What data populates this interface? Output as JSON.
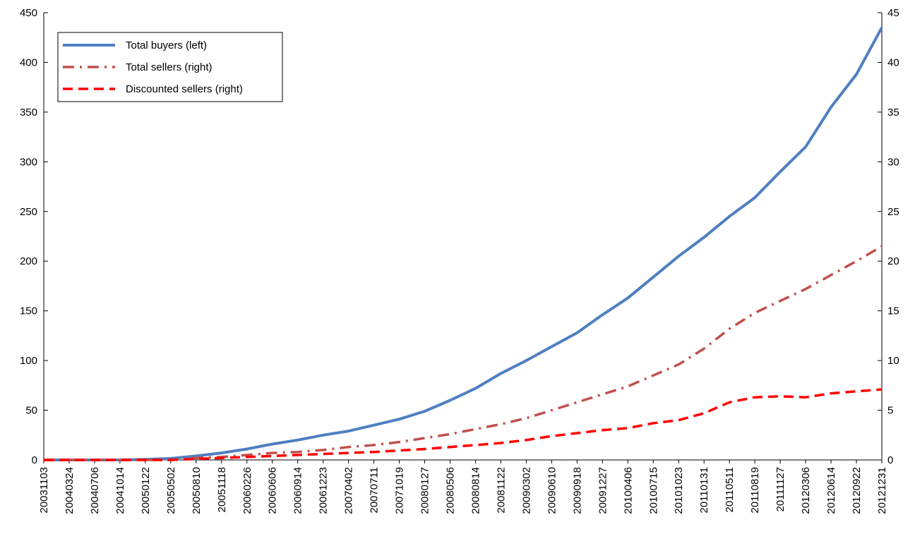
{
  "chart_data": {
    "type": "line",
    "title": "",
    "xlabel": "",
    "ylabel_left": "",
    "ylabel_right": "",
    "x_tick_labels": [
      "20031103",
      "20040324",
      "20040706",
      "20041014",
      "20050122",
      "20050502",
      "20050810",
      "20051118",
      "20060226",
      "20060606",
      "20060914",
      "20061223",
      "20070402",
      "20070711",
      "20071019",
      "20080127",
      "20080506",
      "20080814",
      "20081122",
      "20090302",
      "20090610",
      "20090918",
      "20091227",
      "20100406",
      "20100715",
      "20101023",
      "20110131",
      "20110511",
      "20110819",
      "20111127",
      "20120306",
      "20120614",
      "20120922",
      "20121231"
    ],
    "y_left": {
      "min": 0,
      "max": 450,
      "ticks": [
        0,
        50,
        100,
        150,
        200,
        250,
        300,
        350,
        400,
        450
      ]
    },
    "y_right": {
      "min": 0,
      "max": 45,
      "ticks": [
        0,
        5,
        10,
        15,
        20,
        25,
        30,
        35,
        40,
        45
      ]
    },
    "legend_position": "top-left",
    "grid": false,
    "series": [
      {
        "name": "Total buyers (left)",
        "axis": "left",
        "color": "#4f7fc1",
        "style": "solid",
        "points": [
          [
            "20031103",
            0
          ],
          [
            "20040324",
            0
          ],
          [
            "20040706",
            0
          ],
          [
            "20041014",
            0
          ],
          [
            "20050122",
            0.5
          ],
          [
            "20050502",
            1.5
          ],
          [
            "20050810",
            4
          ],
          [
            "20051118",
            7
          ],
          [
            "20060226",
            11
          ],
          [
            "20060606",
            16
          ],
          [
            "20060914",
            20
          ],
          [
            "20061223",
            25
          ],
          [
            "20070402",
            29
          ],
          [
            "20070711",
            35
          ],
          [
            "20071019",
            41
          ],
          [
            "20080127",
            49
          ],
          [
            "20080506",
            60
          ],
          [
            "20080814",
            72
          ],
          [
            "20081122",
            87
          ],
          [
            "20090302",
            100
          ],
          [
            "20090610",
            114
          ],
          [
            "20090918",
            128
          ],
          [
            "20091227",
            146
          ],
          [
            "20100406",
            163
          ],
          [
            "20100715",
            184
          ],
          [
            "20101023",
            205
          ],
          [
            "20110131",
            224
          ],
          [
            "20110511",
            245
          ],
          [
            "20110819",
            264
          ],
          [
            "20111127",
            290
          ],
          [
            "20120306",
            315
          ],
          [
            "20120614",
            355
          ],
          [
            "20120922",
            388
          ],
          [
            "20121231",
            435
          ]
        ]
      },
      {
        "name": "Total sellers (right)",
        "axis": "right",
        "color": "#c0504d",
        "style": "dash-dot",
        "points": [
          [
            "20031103",
            0
          ],
          [
            "20040324",
            0
          ],
          [
            "20040706",
            0
          ],
          [
            "20041014",
            0
          ],
          [
            "20050122",
            0
          ],
          [
            "20050502",
            0
          ],
          [
            "20050810",
            0.2
          ],
          [
            "20051118",
            0.3
          ],
          [
            "20060226",
            0.5
          ],
          [
            "20060606",
            0.7
          ],
          [
            "20060914",
            0.8
          ],
          [
            "20061223",
            1
          ],
          [
            "20070402",
            1.3
          ],
          [
            "20070711",
            1.5
          ],
          [
            "20071019",
            1.8
          ],
          [
            "20080127",
            2.2
          ],
          [
            "20080506",
            2.6
          ],
          [
            "20080814",
            3.1
          ],
          [
            "20081122",
            3.6
          ],
          [
            "20090302",
            4.2
          ],
          [
            "20090610",
            5
          ],
          [
            "20090918",
            5.8
          ],
          [
            "20091227",
            6.6
          ],
          [
            "20100406",
            7.4
          ],
          [
            "20100715",
            8.5
          ],
          [
            "20101023",
            9.6
          ],
          [
            "20110131",
            11.2
          ],
          [
            "20110511",
            13.2
          ],
          [
            "20110819",
            14.8
          ],
          [
            "20111127",
            16
          ],
          [
            "20120306",
            17.2
          ],
          [
            "20120614",
            18.6
          ],
          [
            "20120922",
            20
          ],
          [
            "20121231",
            21.5
          ]
        ]
      },
      {
        "name": "Discounted sellers (right)",
        "axis": "right",
        "color": "#ff0000",
        "style": "dashed",
        "points": [
          [
            "20031103",
            0
          ],
          [
            "20040324",
            0
          ],
          [
            "20040706",
            0
          ],
          [
            "20041014",
            0
          ],
          [
            "20050122",
            0
          ],
          [
            "20050502",
            0
          ],
          [
            "20050810",
            0.1
          ],
          [
            "20051118",
            0.2
          ],
          [
            "20060226",
            0.3
          ],
          [
            "20060606",
            0.4
          ],
          [
            "20060914",
            0.5
          ],
          [
            "20061223",
            0.6
          ],
          [
            "20070402",
            0.7
          ],
          [
            "20070711",
            0.8
          ],
          [
            "20071019",
            0.95
          ],
          [
            "20080127",
            1.1
          ],
          [
            "20080506",
            1.3
          ],
          [
            "20080814",
            1.5
          ],
          [
            "20081122",
            1.7
          ],
          [
            "20090302",
            2
          ],
          [
            "20090610",
            2.4
          ],
          [
            "20090918",
            2.7
          ],
          [
            "20091227",
            3
          ],
          [
            "20100406",
            3.2
          ],
          [
            "20100715",
            3.7
          ],
          [
            "20101023",
            4
          ],
          [
            "20110131",
            4.7
          ],
          [
            "20110511",
            5.8
          ],
          [
            "20110819",
            6.3
          ],
          [
            "20111127",
            6.4
          ],
          [
            "20120306",
            6.3
          ],
          [
            "20120614",
            6.7
          ],
          [
            "20120922",
            6.9
          ],
          [
            "20121231",
            7.1
          ]
        ]
      }
    ]
  }
}
